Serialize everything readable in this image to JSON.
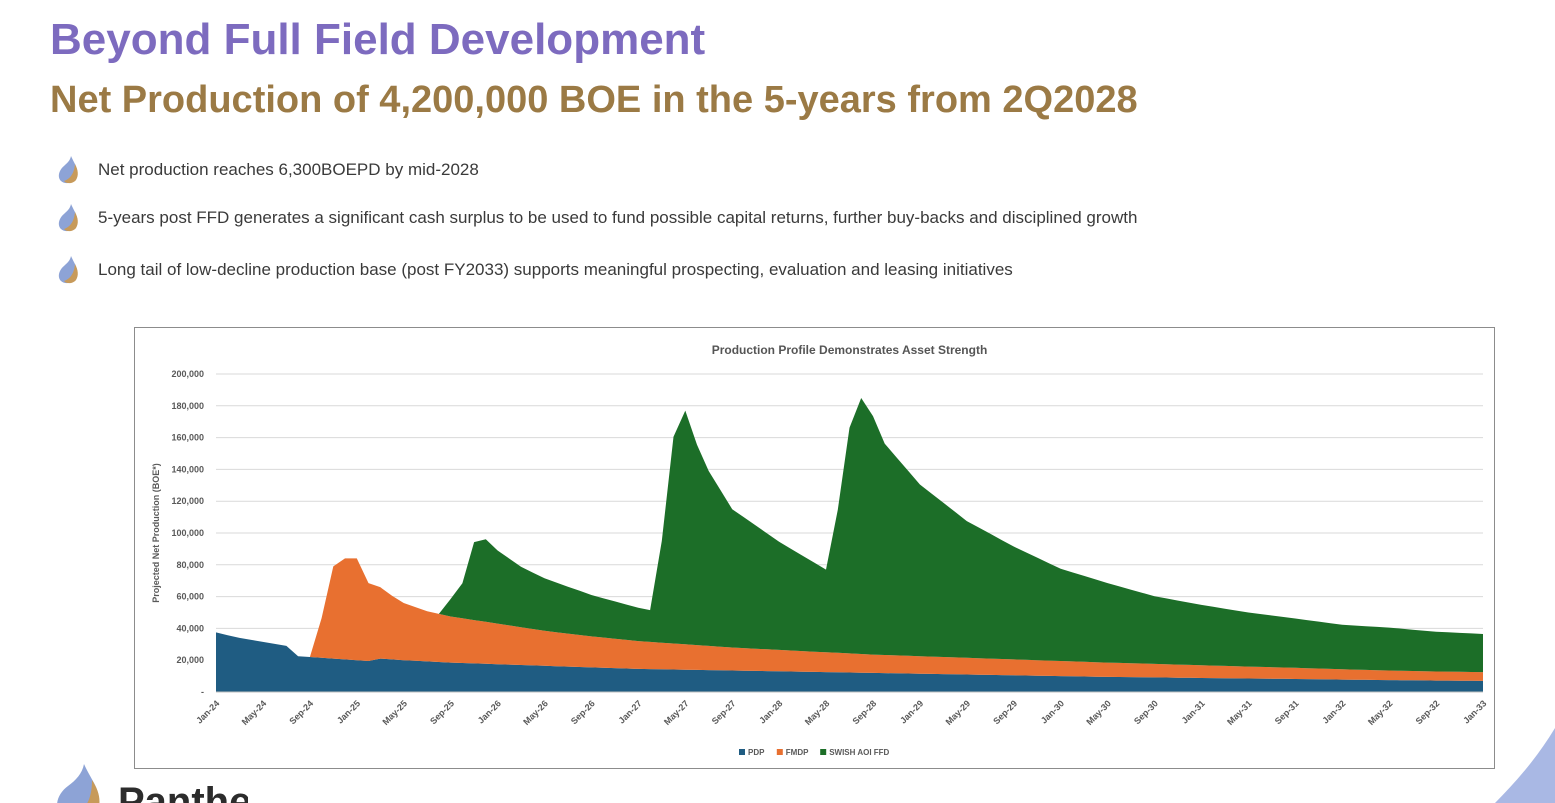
{
  "header": {
    "title": "Beyond Full Field Development",
    "subtitle": "Net Production of 4,200,000 BOE in the 5-years from 2Q2028"
  },
  "bullets": [
    {
      "icon": "flame-drop-icon",
      "text": "Net production reaches 6,300BOEPD by mid-2028"
    },
    {
      "icon": "flame-drop-icon",
      "text": "5-years post FFD generates a significant cash surplus to be used to fund possible capital returns, further buy-backs and disciplined growth"
    },
    {
      "icon": "flame-drop-icon",
      "text": "Long tail of low-decline production base (post FY2033) supports meaningful prospecting, evaluation and leasing initiatives"
    }
  ],
  "logo": {
    "text": "Pantheon",
    "icon": "flame-drop-logo"
  },
  "chart_data": {
    "type": "area",
    "stacked": true,
    "title": "Production Profile Demonstrates Asset Strength",
    "xlabel": "",
    "ylabel": "Projected Net Production (BOE*)",
    "ylim": [
      0,
      200000
    ],
    "y_ticks": [
      {
        "value": 0,
        "label": "-"
      },
      {
        "value": 20000,
        "label": "20,000"
      },
      {
        "value": 40000,
        "label": "40,000"
      },
      {
        "value": 60000,
        "label": "60,000"
      },
      {
        "value": 80000,
        "label": "80,000"
      },
      {
        "value": 100000,
        "label": "100,000"
      },
      {
        "value": 120000,
        "label": "120,000"
      },
      {
        "value": 140000,
        "label": "140,000"
      },
      {
        "value": 160000,
        "label": "160,000"
      },
      {
        "value": 180000,
        "label": "180,000"
      },
      {
        "value": 200000,
        "label": "200,000"
      }
    ],
    "x_range": [
      "Jan-24",
      "Jan-33"
    ],
    "x_ticks": [
      "Jan-24",
      "May-24",
      "Sep-24",
      "Jan-25",
      "May-25",
      "Sep-25",
      "Jan-26",
      "May-26",
      "Sep-26",
      "Jan-27",
      "May-27",
      "Sep-27",
      "Jan-28",
      "May-28",
      "Sep-28",
      "Jan-29",
      "May-29",
      "Sep-29",
      "Jan-30",
      "May-30",
      "Sep-30",
      "Jan-31",
      "May-31",
      "Sep-31",
      "Jan-32",
      "May-32",
      "Sep-32",
      "Jan-33"
    ],
    "grid": true,
    "legend_position": "bottom",
    "series": [
      {
        "name": "PDP",
        "color": "#1f5c82",
        "points": [
          [
            "Jan-24",
            37500
          ],
          [
            "Mar-24",
            34000
          ],
          [
            "May-24",
            31500
          ],
          [
            "Jul-24",
            29000
          ],
          [
            "Aug-24",
            22500
          ],
          [
            "Sep-24",
            22000
          ],
          [
            "Dec-24",
            20500
          ],
          [
            "Feb-25",
            19500
          ],
          [
            "Mar-25",
            21000
          ],
          [
            "May-25",
            20000
          ],
          [
            "Sep-25",
            18500
          ],
          [
            "Jan-26",
            17500
          ],
          [
            "May-26",
            16500
          ],
          [
            "Sep-26",
            15500
          ],
          [
            "Jan-27",
            14500
          ],
          [
            "May-27",
            14000
          ],
          [
            "Sep-27",
            13500
          ],
          [
            "Jan-28",
            13000
          ],
          [
            "May-28",
            12500
          ],
          [
            "Sep-28",
            12000
          ],
          [
            "Jan-29",
            11500
          ],
          [
            "May-29",
            11000
          ],
          [
            "Sep-29",
            10500
          ],
          [
            "Jan-30",
            10000
          ],
          [
            "May-30",
            9500
          ],
          [
            "Sep-30",
            9200
          ],
          [
            "Jan-31",
            8800
          ],
          [
            "May-31",
            8500
          ],
          [
            "Sep-31",
            8200
          ],
          [
            "Jan-32",
            7800
          ],
          [
            "May-32",
            7500
          ],
          [
            "Sep-32",
            7200
          ],
          [
            "Jan-33",
            7000
          ]
        ]
      },
      {
        "name": "FMDP",
        "color": "#e87030",
        "points": [
          [
            "Jan-24",
            0
          ],
          [
            "Aug-24",
            0
          ],
          [
            "Sep-24",
            0
          ],
          [
            "Oct-24",
            25000
          ],
          [
            "Nov-24",
            58000
          ],
          [
            "Dec-24",
            63500
          ],
          [
            "Jan-25",
            64000
          ],
          [
            "Feb-25",
            49000
          ],
          [
            "Mar-25",
            45000
          ],
          [
            "Apr-25",
            40000
          ],
          [
            "May-25",
            36000
          ],
          [
            "Jul-25",
            31500
          ],
          [
            "Sep-25",
            29000
          ],
          [
            "Jan-26",
            25500
          ],
          [
            "May-26",
            22000
          ],
          [
            "Sep-26",
            19500
          ],
          [
            "Jan-27",
            17500
          ],
          [
            "May-27",
            16000
          ],
          [
            "Sep-27",
            14500
          ],
          [
            "Jan-28",
            13500
          ],
          [
            "May-28",
            12500
          ],
          [
            "Sep-28",
            11500
          ],
          [
            "Jan-29",
            11000
          ],
          [
            "May-29",
            10500
          ],
          [
            "Sep-29",
            10000
          ],
          [
            "Jan-30",
            9500
          ],
          [
            "May-30",
            9000
          ],
          [
            "Sep-30",
            8500
          ],
          [
            "Jan-31",
            8000
          ],
          [
            "May-31",
            7500
          ],
          [
            "Sep-31",
            7000
          ],
          [
            "Jan-32",
            6500
          ],
          [
            "May-32",
            6000
          ],
          [
            "Sep-32",
            5700
          ],
          [
            "Jan-33",
            5500
          ]
        ]
      },
      {
        "name": "SWISH AOI FFD",
        "color": "#1c6e28",
        "points": [
          [
            "Jan-24",
            0
          ],
          [
            "Aug-25",
            0
          ],
          [
            "Oct-25",
            22000
          ],
          [
            "Nov-25",
            49000
          ],
          [
            "Dec-25",
            52000
          ],
          [
            "Jan-26",
            46000
          ],
          [
            "Mar-26",
            38000
          ],
          [
            "May-26",
            33000
          ],
          [
            "Sep-26",
            26000
          ],
          [
            "Jan-27",
            21000
          ],
          [
            "Feb-27",
            20000
          ],
          [
            "Mar-27",
            64000
          ],
          [
            "Apr-27",
            130000
          ],
          [
            "May-27",
            147000
          ],
          [
            "Jun-27",
            126000
          ],
          [
            "Jul-27",
            110000
          ],
          [
            "Sep-27",
            87000
          ],
          [
            "Jan-28",
            68000
          ],
          [
            "Mar-28",
            60000
          ],
          [
            "Apr-28",
            56000
          ],
          [
            "May-28",
            52000
          ],
          [
            "Jun-28",
            90000
          ],
          [
            "Jul-28",
            142000
          ],
          [
            "Aug-28",
            161000
          ],
          [
            "Sep-28",
            150000
          ],
          [
            "Oct-28",
            133000
          ],
          [
            "Jan-29",
            108000
          ],
          [
            "May-29",
            86000
          ],
          [
            "Sep-29",
            71000
          ],
          [
            "Jan-30",
            58000
          ],
          [
            "May-30",
            50000
          ],
          [
            "Sep-30",
            42500
          ],
          [
            "Jan-31",
            38000
          ],
          [
            "May-31",
            34000
          ],
          [
            "Sep-31",
            31000
          ],
          [
            "Jan-32",
            28000
          ],
          [
            "May-32",
            27000
          ],
          [
            "Sep-32",
            25000
          ],
          [
            "Jan-33",
            24000
          ]
        ]
      }
    ]
  }
}
